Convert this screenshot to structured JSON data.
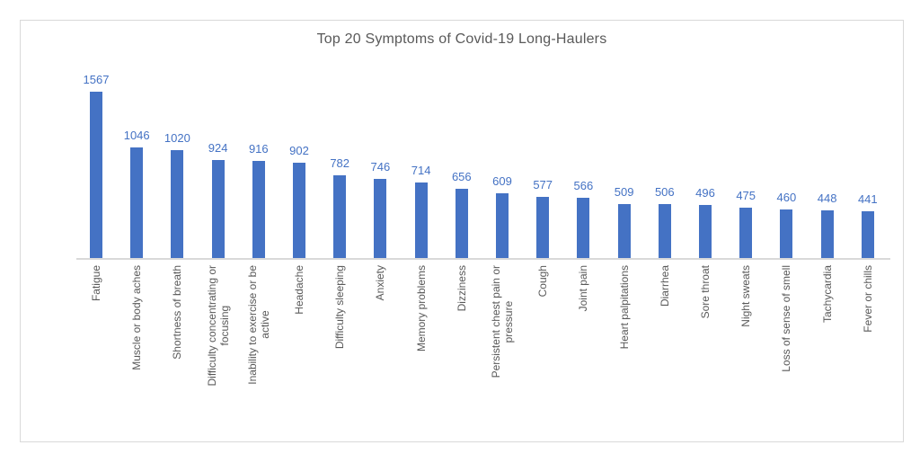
{
  "chart_data": {
    "type": "bar",
    "title": "Top 20 Symptoms of Covid-19 Long-Haulers",
    "categories": [
      "Fatigue",
      "Muscle or body aches",
      "Shortness of breath",
      "Difficulty concentrating or\nfocusing",
      "Inability to exercise or be\nactive",
      "Headache",
      "Difficulty sleeping",
      "Anxiety",
      "Memory problems",
      "Dizziness",
      "Persistent chest pain or\npressure",
      "Cough",
      "Joint pain",
      "Heart palpitations",
      "Diarrhea",
      "Sore throat",
      "Night sweats",
      "Loss of sense of smell",
      "Tachycardia",
      "Fever or chills"
    ],
    "values": [
      1567,
      1046,
      1020,
      924,
      916,
      902,
      782,
      746,
      714,
      656,
      609,
      577,
      566,
      509,
      506,
      496,
      475,
      460,
      448,
      441
    ],
    "value_labels_shown": true,
    "xlabel": "",
    "ylabel": "",
    "ylim": [
      0,
      1700
    ],
    "legend": "none",
    "gridlines": false,
    "y_axis_visible": false,
    "category_label_rotation_degrees": 90,
    "colors": {
      "bar": "#4472C4",
      "value_label": "#4472C4",
      "category_label": "#595959",
      "title": "#595959",
      "border": "#D9D9D9",
      "axis": "#D9D9D9",
      "background": "#FFFFFF"
    }
  }
}
